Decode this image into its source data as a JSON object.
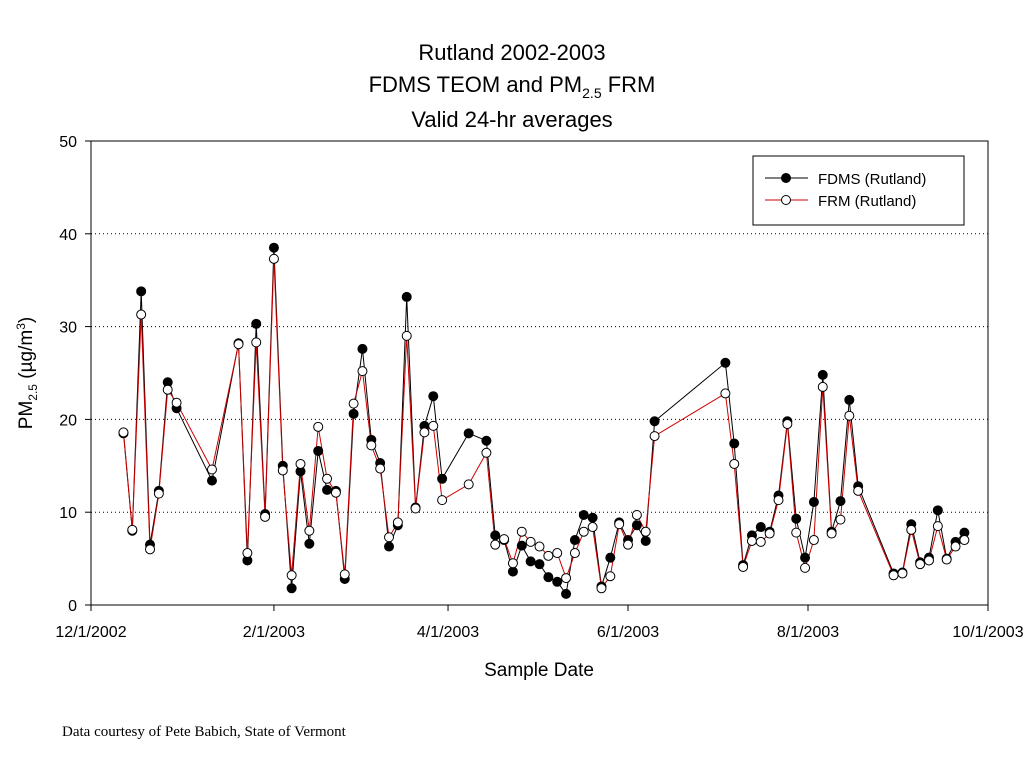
{
  "chart_data": {
    "type": "line",
    "title_line1": "Rutland 2002-2003",
    "title_line2_prefix": "FDMS TEOM and PM",
    "title_line2_sub": "2.5",
    "title_line2_suffix": " FRM",
    "title_line3": "Valid 24-hr averages",
    "xlabel": "Sample Date",
    "ylabel_prefix": "PM",
    "ylabel_sub": "2.5",
    "ylabel_mid": " (µg/m",
    "ylabel_sup": "3",
    "ylabel_suffix": ")",
    "xlim": [
      "2002-12-01",
      "2003-10-01"
    ],
    "ylim": [
      0,
      50
    ],
    "x_ticks": [
      "2002-12-01",
      "2003-02-01",
      "2003-04-01",
      "2003-06-01",
      "2003-08-01",
      "2003-10-01"
    ],
    "x_tick_labels": [
      "12/1/2002",
      "2/1/2003",
      "4/1/2003",
      "6/1/2003",
      "8/1/2003",
      "10/1/2003"
    ],
    "y_ticks": [
      0,
      10,
      20,
      30,
      40,
      50
    ],
    "y_tick_labels": [
      "0",
      "10",
      "20",
      "30",
      "40",
      "50"
    ],
    "grid": "horizontal dotted",
    "legend_position": "top-right",
    "series": [
      {
        "name": "FDMS (Rutland)",
        "color": "#000000",
        "marker": "filled",
        "points": [
          [
            "2002-12-12",
            18.5
          ],
          [
            "2002-12-15",
            8.0
          ],
          [
            "2002-12-18",
            33.8
          ],
          [
            "2002-12-21",
            6.5
          ],
          [
            "2002-12-24",
            12.3
          ],
          [
            "2002-12-27",
            24.0
          ],
          [
            "2002-12-30",
            21.2
          ],
          [
            "2003-01-11",
            13.4
          ],
          [
            "2003-01-20",
            28.2
          ],
          [
            "2003-01-23",
            4.8
          ],
          [
            "2003-01-26",
            30.3
          ],
          [
            "2003-01-29",
            9.8
          ],
          [
            "2003-02-01",
            38.5
          ],
          [
            "2003-02-04",
            15.0
          ],
          [
            "2003-02-07",
            1.8
          ],
          [
            "2003-02-10",
            14.4
          ],
          [
            "2003-02-13",
            6.6
          ],
          [
            "2003-02-16",
            16.6
          ],
          [
            "2003-02-19",
            12.4
          ],
          [
            "2003-02-22",
            12.3
          ],
          [
            "2003-02-25",
            2.8
          ],
          [
            "2003-02-28",
            20.6
          ],
          [
            "2003-03-03",
            27.6
          ],
          [
            "2003-03-06",
            17.8
          ],
          [
            "2003-03-09",
            15.3
          ],
          [
            "2003-03-12",
            6.3
          ],
          [
            "2003-03-15",
            8.6
          ],
          [
            "2003-03-18",
            33.2
          ],
          [
            "2003-03-21",
            10.5
          ],
          [
            "2003-03-24",
            19.3
          ],
          [
            "2003-03-27",
            22.5
          ],
          [
            "2003-03-30",
            13.6
          ],
          [
            "2003-04-08",
            18.5
          ],
          [
            "2003-04-14",
            17.7
          ],
          [
            "2003-04-17",
            7.5
          ],
          [
            "2003-04-20",
            7.0
          ],
          [
            "2003-04-23",
            3.6
          ],
          [
            "2003-04-26",
            6.4
          ],
          [
            "2003-04-29",
            4.7
          ],
          [
            "2003-05-02",
            4.4
          ],
          [
            "2003-05-05",
            3.0
          ],
          [
            "2003-05-08",
            2.5
          ],
          [
            "2003-05-11",
            1.2
          ],
          [
            "2003-05-14",
            7.0
          ],
          [
            "2003-05-17",
            9.7
          ],
          [
            "2003-05-20",
            9.4
          ],
          [
            "2003-05-23",
            2.0
          ],
          [
            "2003-05-26",
            5.1
          ],
          [
            "2003-05-29",
            8.9
          ],
          [
            "2003-06-01",
            7.0
          ],
          [
            "2003-06-04",
            8.6
          ],
          [
            "2003-06-07",
            6.9
          ],
          [
            "2003-06-10",
            19.8
          ],
          [
            "2003-07-04",
            26.1
          ],
          [
            "2003-07-07",
            17.4
          ],
          [
            "2003-07-10",
            4.3
          ],
          [
            "2003-07-13",
            7.5
          ],
          [
            "2003-07-16",
            8.4
          ],
          [
            "2003-07-19",
            7.9
          ],
          [
            "2003-07-22",
            11.8
          ],
          [
            "2003-07-25",
            19.8
          ],
          [
            "2003-07-28",
            9.3
          ],
          [
            "2003-07-31",
            5.1
          ],
          [
            "2003-08-03",
            11.1
          ],
          [
            "2003-08-06",
            24.8
          ],
          [
            "2003-08-09",
            7.9
          ],
          [
            "2003-08-12",
            11.2
          ],
          [
            "2003-08-15",
            22.1
          ],
          [
            "2003-08-18",
            12.8
          ],
          [
            "2003-08-30",
            3.4
          ],
          [
            "2003-09-02",
            3.5
          ],
          [
            "2003-09-05",
            8.7
          ],
          [
            "2003-09-08",
            4.6
          ],
          [
            "2003-09-11",
            5.1
          ],
          [
            "2003-09-14",
            10.2
          ],
          [
            "2003-09-17",
            5.0
          ],
          [
            "2003-09-20",
            6.8
          ],
          [
            "2003-09-23",
            7.8
          ]
        ]
      },
      {
        "name": "FRM (Rutland)",
        "color": "#cc0000",
        "marker": "open",
        "points": [
          [
            "2002-12-12",
            18.6
          ],
          [
            "2002-12-15",
            8.1
          ],
          [
            "2002-12-18",
            31.3
          ],
          [
            "2002-12-21",
            6.0
          ],
          [
            "2002-12-24",
            12.0
          ],
          [
            "2002-12-27",
            23.2
          ],
          [
            "2002-12-30",
            21.8
          ],
          [
            "2003-01-11",
            14.6
          ],
          [
            "2003-01-20",
            28.1
          ],
          [
            "2003-01-23",
            5.6
          ],
          [
            "2003-01-26",
            28.3
          ],
          [
            "2003-01-29",
            9.5
          ],
          [
            "2003-02-01",
            37.3
          ],
          [
            "2003-02-04",
            14.5
          ],
          [
            "2003-02-07",
            3.2
          ],
          [
            "2003-02-10",
            15.2
          ],
          [
            "2003-02-13",
            8.0
          ],
          [
            "2003-02-16",
            19.2
          ],
          [
            "2003-02-19",
            13.6
          ],
          [
            "2003-02-22",
            12.1
          ],
          [
            "2003-02-25",
            3.3
          ],
          [
            "2003-02-28",
            21.7
          ],
          [
            "2003-03-03",
            25.2
          ],
          [
            "2003-03-06",
            17.2
          ],
          [
            "2003-03-09",
            14.7
          ],
          [
            "2003-03-12",
            7.3
          ],
          [
            "2003-03-15",
            8.9
          ],
          [
            "2003-03-18",
            29.0
          ],
          [
            "2003-03-21",
            10.4
          ],
          [
            "2003-03-24",
            18.6
          ],
          [
            "2003-03-27",
            19.3
          ],
          [
            "2003-03-30",
            11.3
          ],
          [
            "2003-04-08",
            13.0
          ],
          [
            "2003-04-14",
            16.4
          ],
          [
            "2003-04-17",
            6.5
          ],
          [
            "2003-04-20",
            7.1
          ],
          [
            "2003-04-23",
            4.5
          ],
          [
            "2003-04-26",
            7.9
          ],
          [
            "2003-04-29",
            6.8
          ],
          [
            "2003-05-02",
            6.3
          ],
          [
            "2003-05-05",
            5.3
          ],
          [
            "2003-05-08",
            5.6
          ],
          [
            "2003-05-11",
            2.9
          ],
          [
            "2003-05-14",
            5.6
          ],
          [
            "2003-05-17",
            7.9
          ],
          [
            "2003-05-20",
            8.4
          ],
          [
            "2003-05-23",
            1.8
          ],
          [
            "2003-05-26",
            3.1
          ],
          [
            "2003-05-29",
            8.7
          ],
          [
            "2003-06-01",
            6.5
          ],
          [
            "2003-06-04",
            9.7
          ],
          [
            "2003-06-07",
            7.9
          ],
          [
            "2003-06-10",
            18.2
          ],
          [
            "2003-07-04",
            22.8
          ],
          [
            "2003-07-07",
            15.2
          ],
          [
            "2003-07-10",
            4.1
          ],
          [
            "2003-07-13",
            6.9
          ],
          [
            "2003-07-16",
            6.8
          ],
          [
            "2003-07-19",
            7.7
          ],
          [
            "2003-07-22",
            11.3
          ],
          [
            "2003-07-25",
            19.5
          ],
          [
            "2003-07-28",
            7.8
          ],
          [
            "2003-07-31",
            4.0
          ],
          [
            "2003-08-03",
            7.0
          ],
          [
            "2003-08-06",
            23.5
          ],
          [
            "2003-08-09",
            7.7
          ],
          [
            "2003-08-12",
            9.2
          ],
          [
            "2003-08-15",
            20.4
          ],
          [
            "2003-08-18",
            12.3
          ],
          [
            "2003-08-30",
            3.2
          ],
          [
            "2003-09-02",
            3.4
          ],
          [
            "2003-09-05",
            8.1
          ],
          [
            "2003-09-08",
            4.4
          ],
          [
            "2003-09-11",
            4.8
          ],
          [
            "2003-09-14",
            8.5
          ],
          [
            "2003-09-17",
            4.9
          ],
          [
            "2003-09-20",
            6.3
          ],
          [
            "2003-09-23",
            7.0
          ]
        ]
      }
    ]
  },
  "credit": "Data courtesy of Pete Babich, State of Vermont"
}
